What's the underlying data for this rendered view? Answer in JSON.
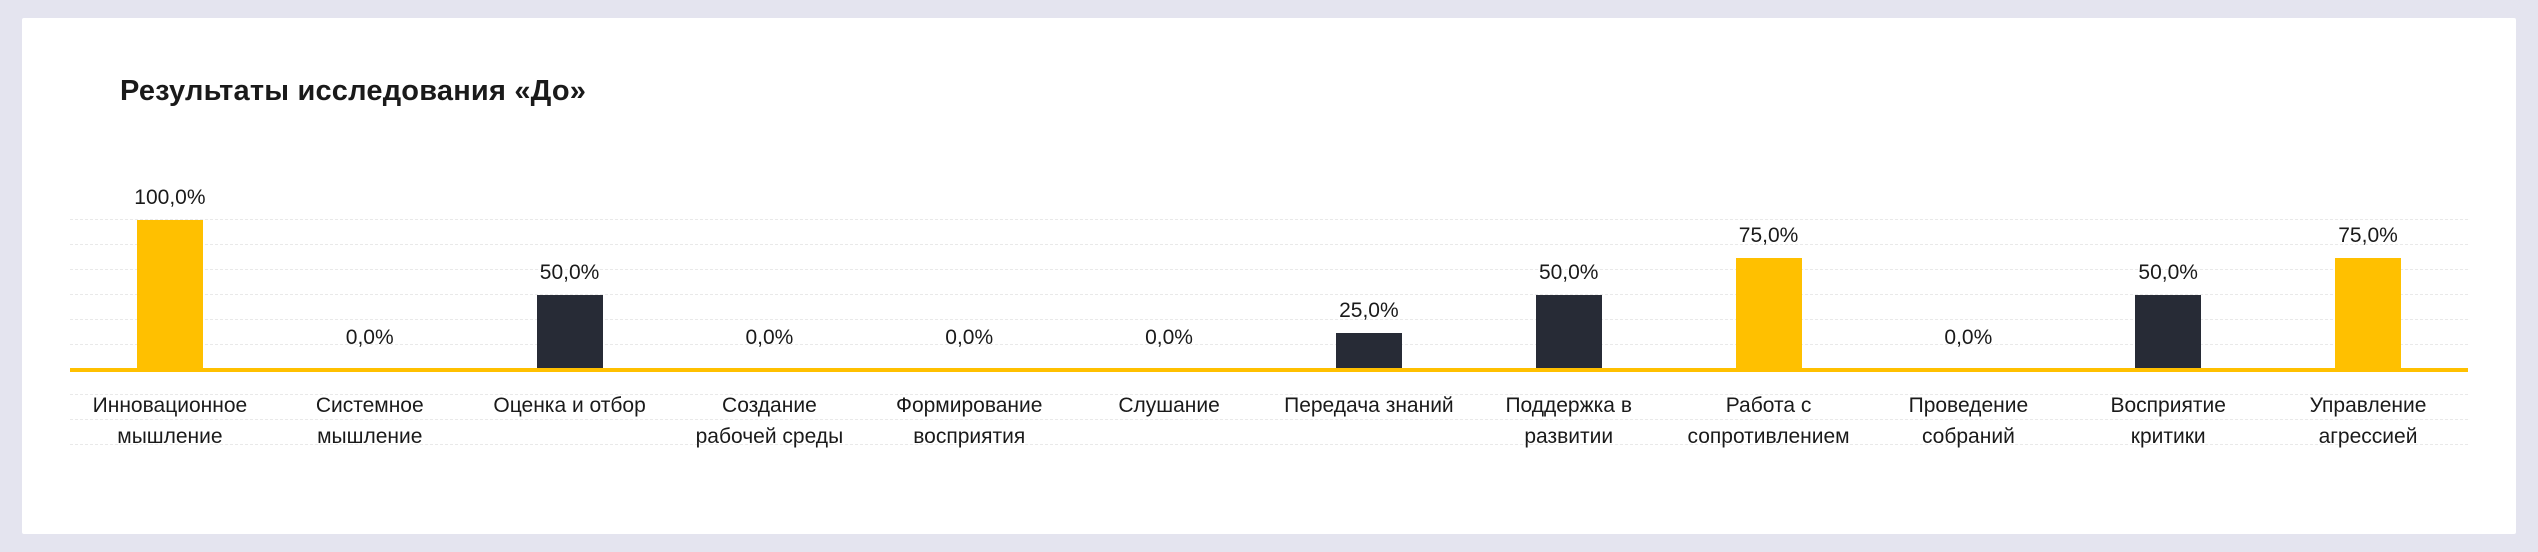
{
  "page": {
    "background_color": "#e4e4ef",
    "card_background_color": "#ffffff"
  },
  "chart_data": {
    "type": "bar",
    "title": "Результаты исследования «До»",
    "categories": [
      "Инновационное мышление",
      "Системное мышление",
      "Оценка и отбор",
      "Создание рабочей среды",
      "Формирование восприятия",
      "Слушание",
      "Передача знаний",
      "Поддержка в развитии",
      "Работа с сопротивлением",
      "Проведение собраний",
      "Восприятие критики",
      "Управление агрессией"
    ],
    "values": [
      100,
      0,
      50,
      0,
      0,
      0,
      25,
      50,
      75,
      0,
      50,
      75
    ],
    "value_labels": [
      "100,0%",
      "0,0%",
      "50,0%",
      "0,0%",
      "0,0%",
      "0,0%",
      "25,0%",
      "50,0%",
      "75,0%",
      "0,0%",
      "50,0%",
      "75,0%"
    ],
    "bar_colors": [
      "#FFC000",
      "#272B36",
      "#272B36",
      "#272B36",
      "#272B36",
      "#272B36",
      "#272B36",
      "#272B36",
      "#FFC000",
      "#272B36",
      "#272B36",
      "#FFC000"
    ],
    "xlabel": "",
    "ylabel": "",
    "ylim": [
      0,
      100
    ],
    "grid": true,
    "legend": false,
    "axis_color": "#FFC000",
    "accent_colors": {
      "highlight": "#FFC000",
      "default": "#272B36"
    }
  }
}
